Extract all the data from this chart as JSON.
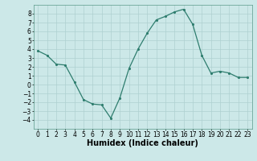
{
  "x": [
    0,
    1,
    2,
    3,
    4,
    5,
    6,
    7,
    8,
    9,
    10,
    11,
    12,
    13,
    14,
    15,
    16,
    17,
    18,
    19,
    20,
    21,
    22,
    23
  ],
  "y": [
    3.8,
    3.3,
    2.3,
    2.2,
    0.3,
    -1.7,
    -2.2,
    -2.3,
    -3.8,
    -1.5,
    1.8,
    4.0,
    5.8,
    7.3,
    7.7,
    8.2,
    8.5,
    6.8,
    3.3,
    1.3,
    1.5,
    1.3,
    0.8,
    0.8
  ],
  "xlabel": "Humidex (Indice chaleur)",
  "ylim": [
    -5,
    9
  ],
  "xlim": [
    -0.5,
    23.5
  ],
  "yticks": [
    -4,
    -3,
    -2,
    -1,
    0,
    1,
    2,
    3,
    4,
    5,
    6,
    7,
    8
  ],
  "xticks": [
    0,
    1,
    2,
    3,
    4,
    5,
    6,
    7,
    8,
    9,
    10,
    11,
    12,
    13,
    14,
    15,
    16,
    17,
    18,
    19,
    20,
    21,
    22,
    23
  ],
  "line_color": "#2e7d6e",
  "marker_color": "#2e7d6e",
  "bg_color": "#cce8e8",
  "grid_color": "#aed0d0",
  "tick_label_fontsize": 5.5,
  "xlabel_fontsize": 7.0
}
